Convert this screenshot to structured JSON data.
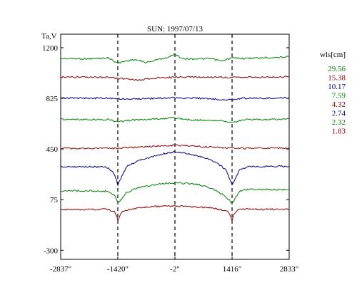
{
  "chart_data": {
    "type": "line",
    "title": "SUN: 1997/07/13",
    "ylabel": "Ta,V",
    "xlabel": "",
    "xlim": [
      -2837,
      2833
    ],
    "ylim": [
      -367,
      1300
    ],
    "yticks": [
      1200,
      825,
      450,
      75,
      -300
    ],
    "ytick_labels": [
      "1200",
      "825",
      "450",
      "75",
      "-300"
    ],
    "xticks": [
      -2837,
      -1420,
      -2,
      1416,
      2833
    ],
    "xtick_labels": [
      "-2837\"",
      "-1420\"",
      "-2\"",
      "1416\"",
      "2833\""
    ],
    "vlines": [
      -1420,
      -2,
      1416
    ],
    "legend": {
      "title": "wls[cm]",
      "position": "right",
      "entries": [
        "29.56",
        "15.38",
        "10.17",
        "7.59",
        "4.32",
        "2.74",
        "2.32",
        "1.83"
      ]
    },
    "series": [
      {
        "name": "29.56",
        "color": "#008000",
        "x": [
          -2837,
          -2000,
          -1650,
          -1420,
          -1250,
          -1000,
          -700,
          -400,
          -150,
          -2,
          150,
          300,
          600,
          900,
          1150,
          1416,
          1700,
          2200,
          2833
        ],
        "values": [
          1120,
          1118,
          1125,
          1085,
          1100,
          1112,
          1090,
          1115,
          1130,
          1155,
          1125,
          1118,
          1118,
          1118,
          1100,
          1125,
          1120,
          1126,
          1132
        ]
      },
      {
        "name": "15.38",
        "color": "#8B0000",
        "x": [
          -2837,
          -2000,
          -1650,
          -1420,
          -1200,
          -900,
          -700,
          -400,
          -2,
          300,
          600,
          900,
          1200,
          1416,
          1700,
          2200,
          2833
        ],
        "values": [
          982,
          980,
          982,
          972,
          970,
          960,
          968,
          976,
          982,
          982,
          982,
          982,
          982,
          978,
          982,
          982,
          984
        ]
      },
      {
        "name": "10.17",
        "color": "#00008B",
        "x": [
          -2837,
          -2000,
          -1650,
          -1420,
          -1000,
          -500,
          -2,
          500,
          1000,
          1416,
          1700,
          2200,
          2833
        ],
        "values": [
          828,
          826,
          828,
          822,
          820,
          825,
          830,
          826,
          820,
          815,
          826,
          826,
          830
        ]
      },
      {
        "name": "7.59",
        "color": "#008000",
        "x": [
          -2837,
          -2000,
          -1650,
          -1420,
          -1250,
          -1000,
          -700,
          -400,
          -100,
          -2,
          200,
          500,
          900,
          1200,
          1416,
          1700,
          2200,
          2833
        ],
        "values": [
          670,
          668,
          668,
          650,
          660,
          665,
          668,
          672,
          680,
          682,
          670,
          665,
          660,
          658,
          645,
          668,
          668,
          672
        ]
      },
      {
        "name": "4.32",
        "color": "#8B0000",
        "x": [
          -2837,
          -2000,
          -1420,
          -1000,
          -500,
          -2,
          500,
          1000,
          1416,
          2200,
          2833
        ],
        "values": [
          455,
          455,
          455,
          462,
          470,
          478,
          470,
          462,
          455,
          455,
          455
        ]
      },
      {
        "name": "2.74",
        "color": "#00008B",
        "x": [
          -2837,
          -2000,
          -1700,
          -1550,
          -1450,
          -1420,
          -1350,
          -1200,
          -900,
          -600,
          -300,
          -100,
          -2,
          150,
          400,
          700,
          1000,
          1250,
          1350,
          1416,
          1480,
          1600,
          1800,
          2200,
          2833
        ],
        "values": [
          318,
          318,
          315,
          285,
          220,
          180,
          230,
          320,
          365,
          390,
          415,
          425,
          428,
          425,
          410,
          390,
          355,
          300,
          235,
          185,
          215,
          295,
          320,
          320,
          322
        ]
      },
      {
        "name": "2.32",
        "color": "#008000",
        "x": [
          -2837,
          -2000,
          -1700,
          -1500,
          -1440,
          -1420,
          -1350,
          -1200,
          -900,
          -600,
          -300,
          -2,
          300,
          600,
          900,
          1200,
          1350,
          1416,
          1460,
          1600,
          1800,
          2200,
          2833
        ],
        "values": [
          140,
          140,
          138,
          110,
          70,
          50,
          70,
          130,
          165,
          180,
          195,
          200,
          195,
          185,
          160,
          110,
          70,
          45,
          68,
          140,
          150,
          150,
          150
        ]
      },
      {
        "name": "1.83",
        "color": "#8B0000",
        "x": [
          -2837,
          -2000,
          -1700,
          -1500,
          -1450,
          -1420,
          -1380,
          -1300,
          -900,
          -500,
          -2,
          500,
          900,
          1300,
          1380,
          1416,
          1460,
          1550,
          1800,
          2200,
          2833
        ],
        "values": [
          0,
          2,
          5,
          -15,
          -45,
          -82,
          -50,
          -10,
          15,
          25,
          28,
          22,
          15,
          -10,
          -45,
          -80,
          -40,
          0,
          5,
          3,
          5
        ]
      }
    ]
  }
}
